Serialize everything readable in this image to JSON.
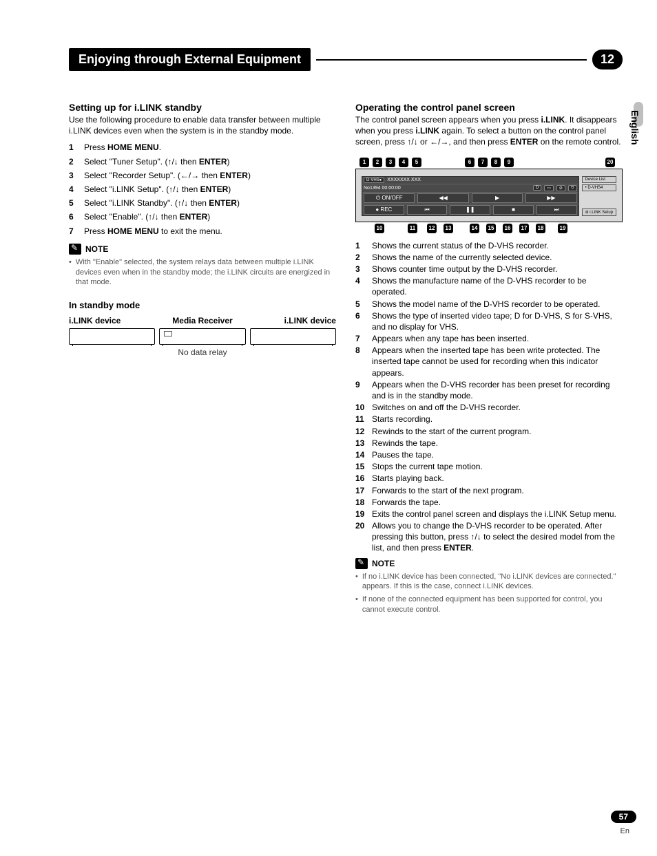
{
  "chapter": {
    "title": "Enjoying through External Equipment",
    "number": "12"
  },
  "sideTab": "English",
  "pageNumber": "57",
  "pageLang": "En",
  "left": {
    "title": "Setting up for i.LINK standby",
    "intro": "Use the following procedure to enable data transfer between multiple i.LINK devices even when the system is in the standby mode.",
    "steps": [
      {
        "n": "1",
        "pre": "Press ",
        "bold": "HOME MENU",
        "post": "."
      },
      {
        "n": "2",
        "pre": "Select \"Tuner Setup\". (",
        "arrows": "↑/↓",
        "mid": " then ",
        "bold": "ENTER",
        "post": ")"
      },
      {
        "n": "3",
        "pre": "Select \"Recorder Setup\". (",
        "arrows": "←/→",
        "mid": " then ",
        "bold": "ENTER",
        "post": ")"
      },
      {
        "n": "4",
        "pre": "Select \"i.LINK Setup\". (",
        "arrows": "↑/↓",
        "mid": " then ",
        "bold": "ENTER",
        "post": ")"
      },
      {
        "n": "5",
        "pre": "Select \"i.LINK Standby\". (",
        "arrows": "↑/↓",
        "mid": " then ",
        "bold": "ENTER",
        "post": ")"
      },
      {
        "n": "6",
        "pre": "Select \"Enable\". (",
        "arrows": "↑/↓",
        "mid": " then ",
        "bold": "ENTER",
        "post": ")"
      },
      {
        "n": "7",
        "pre": "Press ",
        "bold": "HOME MENU",
        "post": " to exit the menu."
      }
    ],
    "noteLabel": "NOTE",
    "notes": [
      "With \"Enable\" selected, the system relays data between multiple i.LINK devices even when in the standby mode; the i.LINK circuits are energized in that mode."
    ],
    "standbyHead": "In standby mode",
    "deviceLabels": {
      "a": "i.LINK device",
      "b": "Media Receiver",
      "c": "i.LINK device"
    },
    "noRelay": "No data relay"
  },
  "right": {
    "title": "Operating the control panel screen",
    "intro": {
      "p1": "The control panel screen appears when you press ",
      "b1": "i.LINK",
      "p2": ". It disappears when you press ",
      "b2": "i.LINK",
      "p3": " again. To select a button on the control panel screen, press ",
      "arr1": "↑/↓",
      "p4": " or ",
      "arr2": "←/→",
      "p5": ", and then press ",
      "b3": "ENTER",
      "p6": " on the remote control."
    },
    "topCallouts": [
      "1",
      "2",
      "3",
      "4",
      "5",
      "6",
      "7",
      "8",
      "9",
      "20"
    ],
    "bottomCallouts": [
      "10",
      "11",
      "12",
      "13",
      "14",
      "15",
      "16",
      "17",
      "18",
      "19"
    ],
    "panel": {
      "status": "D-VHS●",
      "name": "XXXXXXX  XXX",
      "counter": "No1394 00:00:00",
      "tape": "D",
      "deviceList": "Device List",
      "dvhs": "• D-VHS4",
      "setup": "⊛ i.LINK Setup",
      "onoff": "⏻ ON/OFF",
      "rec": "● REC",
      "b_prev": "⏮",
      "b_rew": "◀◀",
      "b_pause": "❚❚",
      "b_stop": "■",
      "b_play": "▶",
      "b_ff": "▶▶",
      "b_next": "⏭"
    },
    "desc": [
      {
        "n": "1",
        "t": "Shows the current status of the D-VHS recorder."
      },
      {
        "n": "2",
        "t": "Shows the name of the currently selected device."
      },
      {
        "n": "3",
        "t": "Shows counter time output by the D-VHS recorder."
      },
      {
        "n": "4",
        "t": "Shows the manufacture name of the D-VHS recorder to be operated."
      },
      {
        "n": "5",
        "t": "Shows the model name of the D-VHS recorder to be operated."
      },
      {
        "n": "6",
        "t": "Shows the type of inserted video tape; D for D-VHS, S for S-VHS, and no display for VHS."
      },
      {
        "n": "7",
        "t": "Appears when any tape has been inserted."
      },
      {
        "n": "8",
        "t": "Appears when the inserted tape has been write protected. The inserted tape cannot be used for recording when this indicator appears."
      },
      {
        "n": "9",
        "t": "Appears when the D-VHS recorder has been preset for recording and is in the standby mode."
      },
      {
        "n": "10",
        "t": "Switches on and off the D-VHS recorder."
      },
      {
        "n": "11",
        "t": "Starts recording."
      },
      {
        "n": "12",
        "t": "Rewinds to the start of the current program."
      },
      {
        "n": "13",
        "t": "Rewinds the tape."
      },
      {
        "n": "14",
        "t": "Pauses the tape."
      },
      {
        "n": "15",
        "t": "Stops the current tape motion."
      },
      {
        "n": "16",
        "t": "Starts playing back."
      },
      {
        "n": "17",
        "t": "Forwards to the start of the next program."
      },
      {
        "n": "18",
        "t": "Forwards the tape."
      },
      {
        "n": "19",
        "t": "Exits the control panel screen and displays the i.LINK Setup menu."
      },
      {
        "n": "20",
        "t_pre": "Allows you to change the D-VHS recorder to be operated. After pressing this button, press ",
        "arr": "↑/↓",
        "t_mid": " to select the desired model from the list, and then press ",
        "b": "ENTER",
        "t_post": "."
      }
    ],
    "noteLabel": "NOTE",
    "notes": [
      "If no i.LINK device has been connected, \"No i.LINK devices are connected.\" appears. If this is the case, connect i.LINK devices.",
      "If none of the connected equipment has been supported for control, you cannot execute control."
    ]
  }
}
